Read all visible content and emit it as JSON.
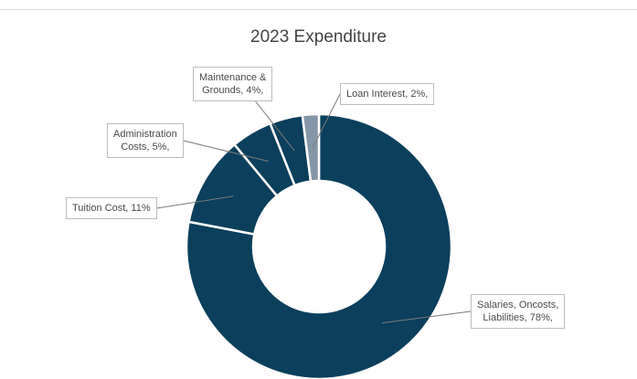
{
  "chart_data": {
    "type": "pie",
    "style": "donut",
    "title": "2023 Expenditure",
    "slices": [
      {
        "name": "Salaries, Oncosts, Liabilities",
        "value": 78,
        "label_lines": [
          "Salaries, Oncosts,",
          "Liabilities, 78%,"
        ],
        "color": "#0b3f5c"
      },
      {
        "name": "Tuition Cost",
        "value": 11,
        "label_lines": [
          "Tuition Cost, 11%"
        ],
        "color": "#0b3f5c"
      },
      {
        "name": "Administration Costs",
        "value": 5,
        "label_lines": [
          "Administration",
          "Costs, 5%,"
        ],
        "color": "#0b3f5c"
      },
      {
        "name": "Maintenance & Grounds",
        "value": 4,
        "label_lines": [
          "Maintenance &",
          "Grounds, 4%,"
        ],
        "color": "#0b3f5c"
      },
      {
        "name": "Loan Interest",
        "value": 2,
        "label_lines": [
          "Loan Interest, 2%,"
        ],
        "color": "#8497a8"
      }
    ],
    "slice_border_color": "#ffffff",
    "leader_line_color": "#7a7a7a"
  }
}
